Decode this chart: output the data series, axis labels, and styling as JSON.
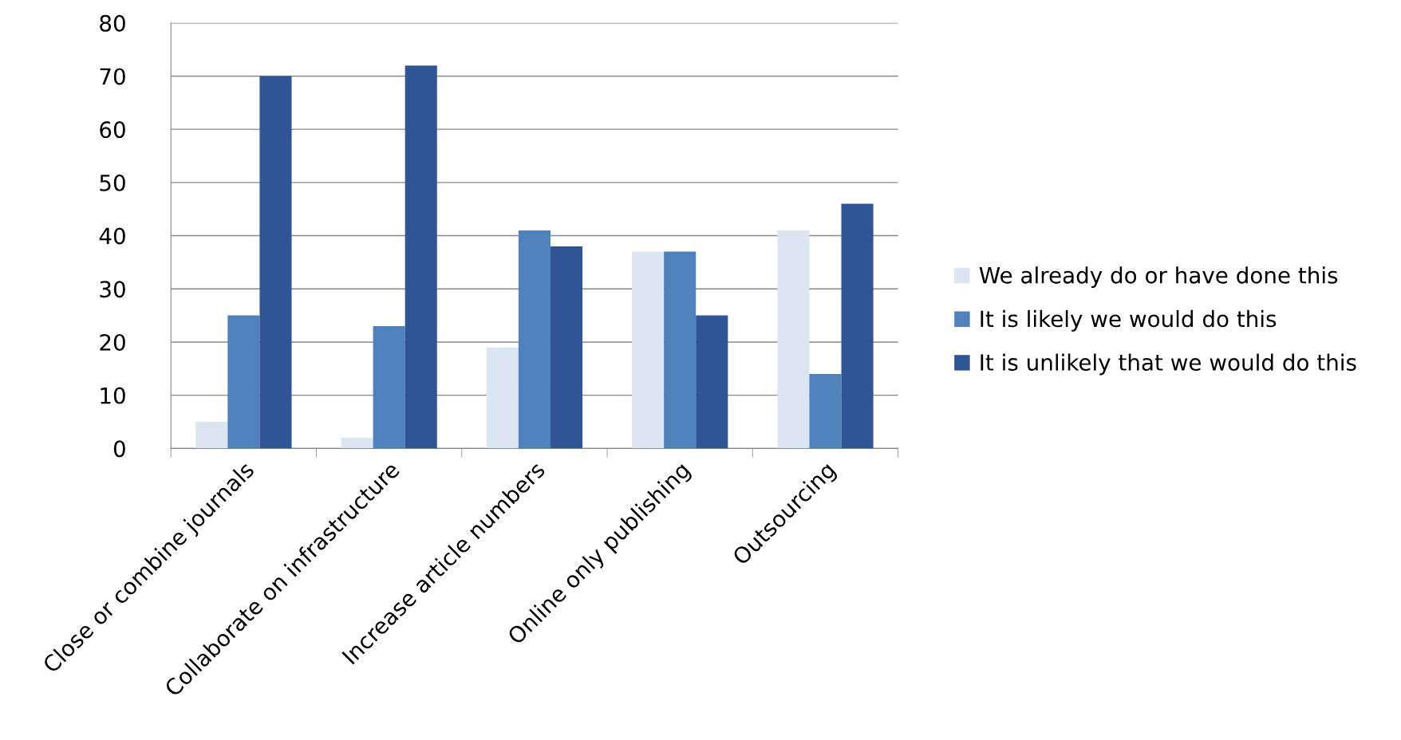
{
  "chart_data": {
    "type": "bar",
    "categories": [
      "Close or combine journals",
      "Collaborate on infrastructure",
      "Increase article numbers",
      "Online only publishing",
      "Outsourcing"
    ],
    "series": [
      {
        "name": "We already do or have done this",
        "color": "#dce6f2",
        "values": [
          5,
          2,
          19,
          37,
          41
        ]
      },
      {
        "name": "It is likely we would do this",
        "color": "#4f81bd",
        "values": [
          25,
          23,
          41,
          37,
          14
        ]
      },
      {
        "name": "It is unlikely that we would do this",
        "color": "#2f5597",
        "values": [
          70,
          72,
          38,
          25,
          46
        ]
      }
    ],
    "ylim": [
      0,
      80
    ],
    "yticks": [
      0,
      10,
      20,
      30,
      40,
      50,
      60,
      70,
      80
    ],
    "grid": "y",
    "legend": "right"
  }
}
